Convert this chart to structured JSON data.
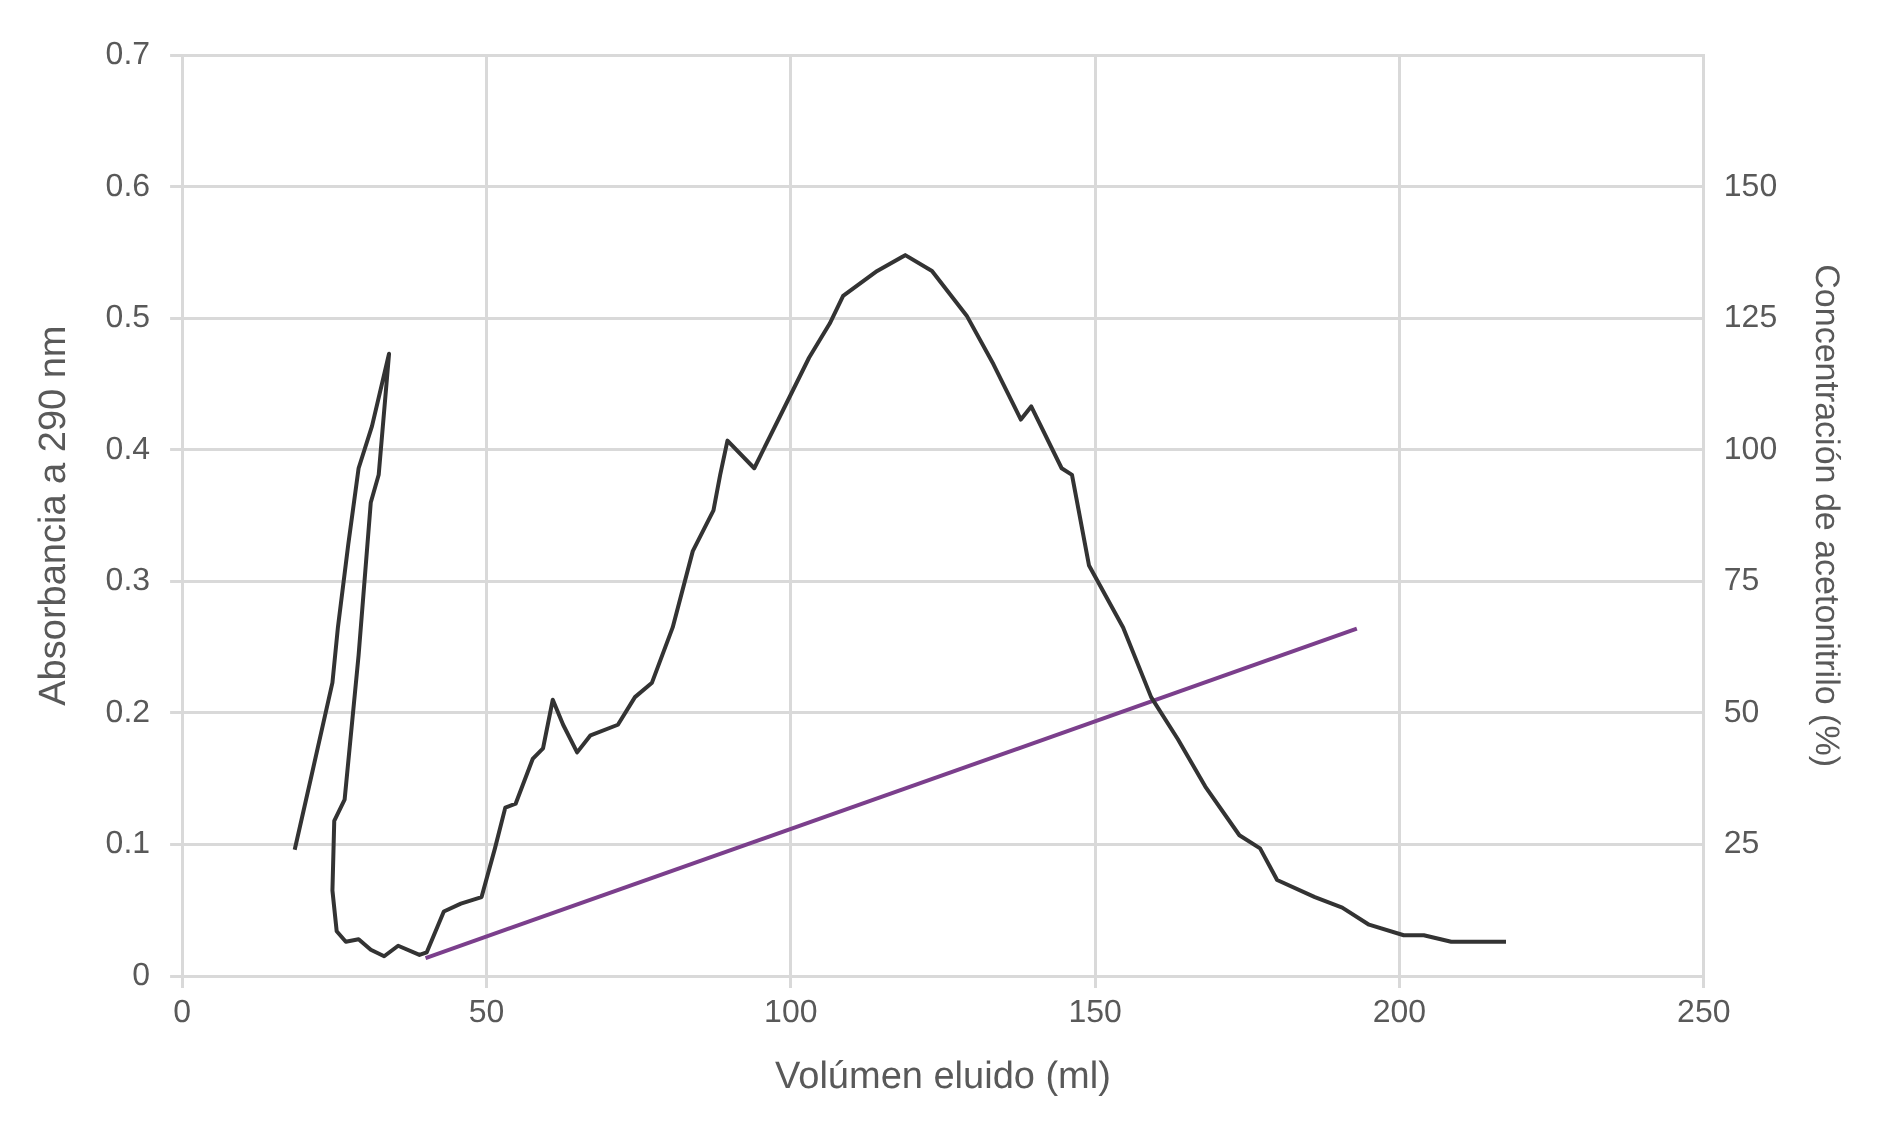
{
  "chart_data": {
    "type": "line",
    "xlabel": "Volúmen eluido (ml)",
    "ylabel": "Absorbancia a 290 nm",
    "y2label": "Concentración de acetonitrilo (%)",
    "xlim": [
      0,
      250
    ],
    "xticks": [
      0,
      50,
      100,
      150,
      200,
      250
    ],
    "ylim": [
      0,
      0.7
    ],
    "yticks": [
      0,
      0.1,
      0.2,
      0.3,
      0.4,
      0.5,
      0.6,
      0.7
    ],
    "y2lim": [
      0,
      175
    ],
    "y2ticks": [
      25,
      50,
      75,
      100,
      125,
      150
    ],
    "grid": true,
    "legend": false,
    "marker": "none",
    "series": [
      {
        "color": "#333333",
        "x": [
          18.5,
          21.1,
          24.7,
          25.6,
          27.3,
          29,
          31.2,
          34,
          32.3,
          31,
          29,
          26.7,
          25,
          24.7,
          25.4,
          26.9,
          29,
          31,
          33.2,
          35.5,
          39,
          40.2,
          43,
          45.8,
          49.2,
          51.4,
          53.1,
          54.8,
          57.6,
          59.3,
          60.9,
          62.6,
          64.9,
          67.1,
          71.6,
          74.4,
          77.2,
          80.6,
          83.9,
          87.3,
          88.4,
          89.6,
          94,
          98.5,
          103,
          106.4,
          108.6,
          114.2,
          118.8,
          123.2,
          128.9,
          133.3,
          137.8,
          139.5,
          144.5,
          146.2,
          149,
          154.6,
          159.2,
          163.6,
          168.1,
          173.7,
          177.1,
          179.9,
          186.1,
          190.6,
          195,
          200.7,
          204,
          208.5,
          217.5
        ],
        "values": [
          0.096,
          0.149,
          0.223,
          0.265,
          0.328,
          0.386,
          0.418,
          0.473,
          0.381,
          0.36,
          0.244,
          0.134,
          0.118,
          0.065,
          0.034,
          0.026,
          0.028,
          0.02,
          0.015,
          0.023,
          0.016,
          0.018,
          0.049,
          0.055,
          0.06,
          0.097,
          0.128,
          0.131,
          0.165,
          0.173,
          0.21,
          0.191,
          0.17,
          0.183,
          0.191,
          0.212,
          0.223,
          0.265,
          0.323,
          0.354,
          0.381,
          0.407,
          0.386,
          0.428,
          0.47,
          0.496,
          0.517,
          0.536,
          0.548,
          0.536,
          0.502,
          0.465,
          0.423,
          0.433,
          0.386,
          0.381,
          0.312,
          0.265,
          0.212,
          0.18,
          0.144,
          0.107,
          0.097,
          0.073,
          0.06,
          0.052,
          0.039,
          0.031,
          0.031,
          0.026,
          0.026
        ]
      },
      {
        "color": "#7b3f8c",
        "axis": "y2",
        "x": [
          40,
          193
        ],
        "values": [
          3.4,
          66
        ]
      }
    ]
  }
}
